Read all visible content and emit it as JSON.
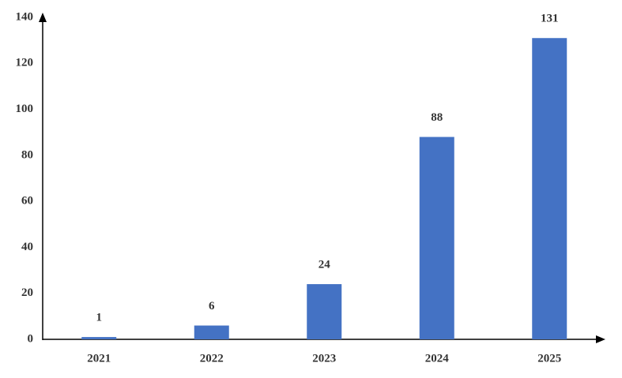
{
  "chart_data": {
    "type": "bar",
    "categories": [
      "2021",
      "2022",
      "2023",
      "2024",
      "2025"
    ],
    "values": [
      1,
      6,
      24,
      88,
      131
    ],
    "color": "#4472c4",
    "ylim": [
      0,
      140
    ],
    "yticks": [
      0,
      20,
      40,
      60,
      80,
      100,
      120,
      140
    ],
    "grid": false
  }
}
